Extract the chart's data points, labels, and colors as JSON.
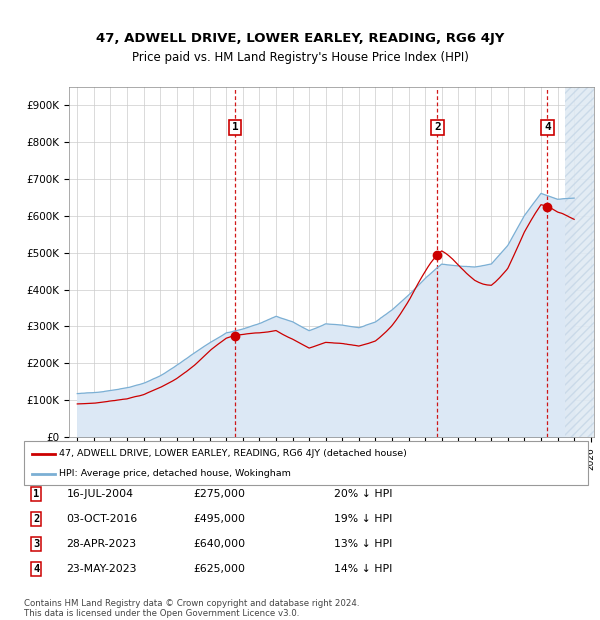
{
  "title": "47, ADWELL DRIVE, LOWER EARLEY, READING, RG6 4JY",
  "subtitle": "Price paid vs. HM Land Registry's House Price Index (HPI)",
  "legend_label_red": "47, ADWELL DRIVE, LOWER EARLEY, READING, RG6 4JY (detached house)",
  "legend_label_blue": "HPI: Average price, detached house, Wokingham",
  "footer1": "Contains HM Land Registry data © Crown copyright and database right 2024.",
  "footer2": "This data is licensed under the Open Government Licence v3.0.",
  "transactions": [
    {
      "num": 1,
      "date": "16-JUL-2004",
      "price": "£275,000",
      "year_float": 2004.54,
      "pct": "20% ↓ HPI"
    },
    {
      "num": 2,
      "date": "03-OCT-2016",
      "price": "£495,000",
      "year_float": 2016.75,
      "pct": "19% ↓ HPI"
    },
    {
      "num": 3,
      "date": "28-APR-2023",
      "price": "£640,000",
      "year_float": 2023.32,
      "pct": "13% ↓ HPI"
    },
    {
      "num": 4,
      "date": "23-MAY-2023",
      "price": "£625,000",
      "year_float": 2023.39,
      "pct": "14% ↓ HPI"
    }
  ],
  "show_on_chart": [
    1,
    2,
    4
  ],
  "marker_prices": {
    "1": 275000,
    "2": 495000,
    "3": 640000,
    "4": 625000
  },
  "ylim": [
    0,
    950000
  ],
  "xlim": [
    1994.5,
    2026.2
  ],
  "yticks": [
    0,
    100000,
    200000,
    300000,
    400000,
    500000,
    600000,
    700000,
    800000,
    900000
  ],
  "ytick_labels": [
    "£0",
    "£100K",
    "£200K",
    "£300K",
    "£400K",
    "£500K",
    "£600K",
    "£700K",
    "£800K",
    "£900K"
  ],
  "xticks": [
    1995,
    1996,
    1997,
    1998,
    1999,
    2000,
    2001,
    2002,
    2003,
    2004,
    2005,
    2006,
    2007,
    2008,
    2009,
    2010,
    2011,
    2012,
    2013,
    2014,
    2015,
    2016,
    2017,
    2018,
    2019,
    2020,
    2021,
    2022,
    2023,
    2024,
    2025,
    2026
  ],
  "color_red": "#cc0000",
  "color_blue": "#7bafd4",
  "color_fill": "#dce8f5",
  "bg_color": "#ffffff",
  "grid_color": "#cccccc",
  "hatch_color": "#c8d8e8"
}
